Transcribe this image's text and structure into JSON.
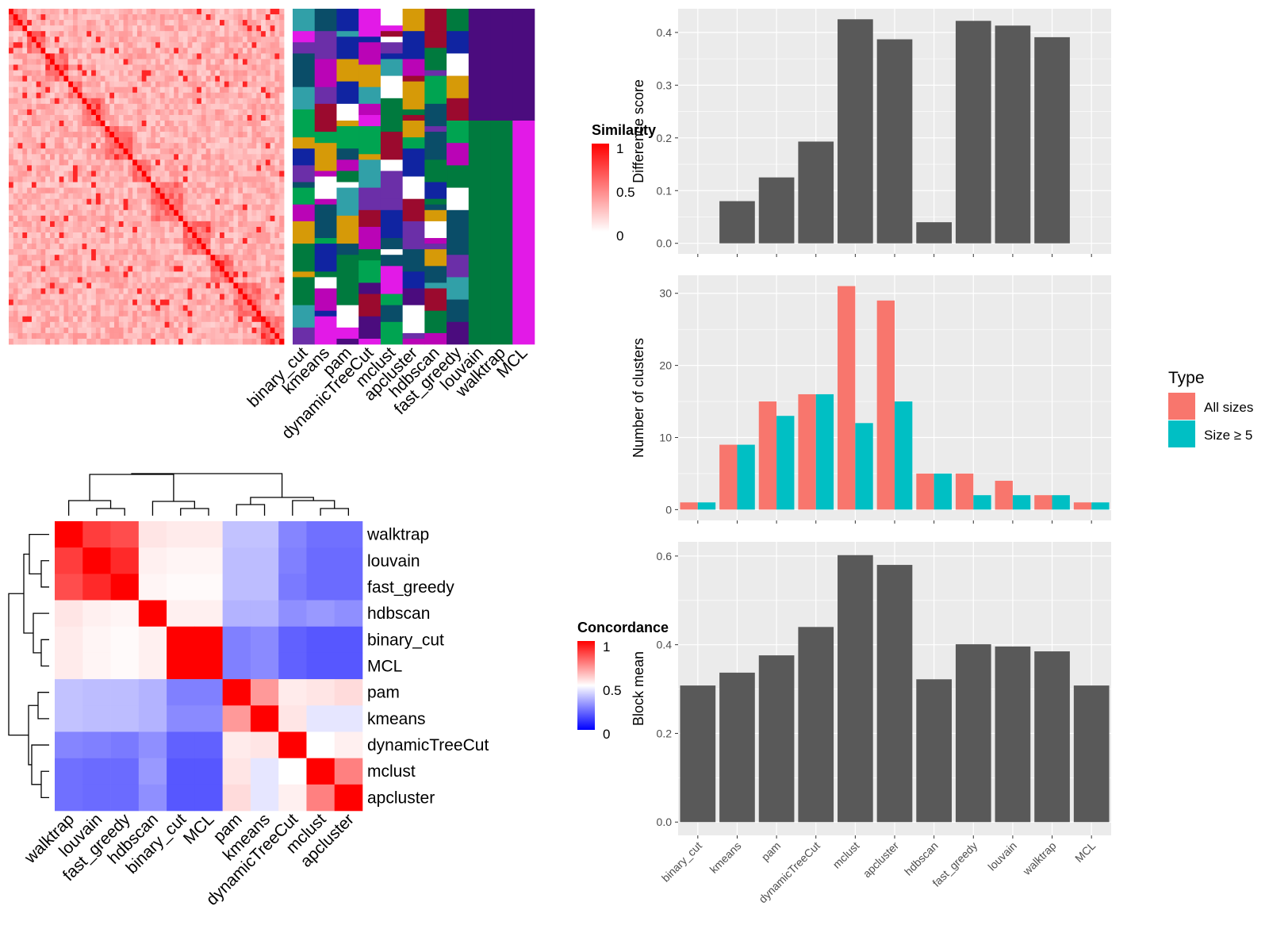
{
  "colors": {
    "panel_bg": "#ebebeb",
    "grid": "#ffffff",
    "bar": "#595959",
    "all_sizes": "#f8766d",
    "size_ge5": "#00bfc4",
    "heat_high": "#ff0000",
    "heat_mid": "#ffffff",
    "heat_low": "#0000ff",
    "membership_bg": "#4b0c7e"
  },
  "methods": [
    "binary_cut",
    "kmeans",
    "pam",
    "dynamicTreeCut",
    "mclust",
    "apcluster",
    "hdbscan",
    "fast_greedy",
    "louvain",
    "walktrap",
    "MCL"
  ],
  "similarity_panel": {
    "legend_title": "Similarity",
    "legend_ticks": [
      "1",
      "0.5",
      "0"
    ],
    "column_labels": [
      "binary_cut",
      "kmeans",
      "pam",
      "dynamicTreeCut",
      "mclust",
      "apcluster",
      "hdbscan",
      "fast_greedy",
      "louvain",
      "walktrap",
      "MCL"
    ]
  },
  "concordance_panel": {
    "legend_title": "Concordance",
    "legend_ticks": [
      "1",
      "0.5",
      "0"
    ],
    "order": [
      "walktrap",
      "louvain",
      "fast_greedy",
      "hdbscan",
      "binary_cut",
      "MCL",
      "pam",
      "kmeans",
      "dynamicTreeCut",
      "mclust",
      "apcluster"
    ],
    "matrix": [
      [
        1.0,
        0.88,
        0.85,
        0.55,
        0.54,
        0.54,
        0.38,
        0.38,
        0.26,
        0.22,
        0.22
      ],
      [
        0.88,
        1.0,
        0.92,
        0.53,
        0.52,
        0.52,
        0.37,
        0.37,
        0.25,
        0.21,
        0.21
      ],
      [
        0.85,
        0.92,
        1.0,
        0.52,
        0.51,
        0.51,
        0.37,
        0.37,
        0.24,
        0.21,
        0.21
      ],
      [
        0.55,
        0.53,
        0.52,
        1.0,
        0.53,
        0.53,
        0.35,
        0.35,
        0.28,
        0.3,
        0.28
      ],
      [
        0.54,
        0.52,
        0.51,
        0.53,
        1.0,
        1.0,
        0.25,
        0.27,
        0.19,
        0.17,
        0.17
      ],
      [
        0.54,
        0.52,
        0.51,
        0.53,
        1.0,
        1.0,
        0.25,
        0.27,
        0.19,
        0.17,
        0.17
      ],
      [
        0.38,
        0.37,
        0.37,
        0.35,
        0.25,
        0.25,
        1.0,
        0.7,
        0.54,
        0.55,
        0.57
      ],
      [
        0.38,
        0.37,
        0.37,
        0.35,
        0.27,
        0.27,
        0.7,
        1.0,
        0.55,
        0.45,
        0.45
      ],
      [
        0.26,
        0.25,
        0.24,
        0.28,
        0.19,
        0.19,
        0.54,
        0.55,
        1.0,
        0.5,
        0.53
      ],
      [
        0.22,
        0.21,
        0.21,
        0.3,
        0.17,
        0.17,
        0.55,
        0.45,
        0.5,
        1.0,
        0.75
      ],
      [
        0.22,
        0.21,
        0.21,
        0.28,
        0.17,
        0.17,
        0.57,
        0.45,
        0.53,
        0.75,
        1.0
      ]
    ]
  },
  "chart_data": [
    {
      "type": "bar",
      "categories": [
        "binary_cut",
        "kmeans",
        "pam",
        "dynamicTreeCut",
        "mclust",
        "apcluster",
        "hdbscan",
        "fast_greedy",
        "louvain",
        "walktrap",
        "MCL"
      ],
      "values": [
        0.0,
        0.08,
        0.125,
        0.193,
        0.425,
        0.387,
        0.04,
        0.422,
        0.413,
        0.391,
        0.0
      ],
      "ylabel": "Difference score",
      "ylim": [
        -0.02,
        0.445
      ],
      "yticks": [
        0.0,
        0.1,
        0.2,
        0.3,
        0.4
      ],
      "ytick_labels": [
        "0.0",
        "0.1",
        "0.2",
        "0.3",
        "0.4"
      ],
      "grid": true
    },
    {
      "type": "bar",
      "categories": [
        "binary_cut",
        "kmeans",
        "pam",
        "dynamicTreeCut",
        "mclust",
        "apcluster",
        "hdbscan",
        "fast_greedy",
        "louvain",
        "walktrap",
        "MCL"
      ],
      "series": [
        {
          "name": "All sizes",
          "values": [
            1,
            9,
            15,
            16,
            31,
            29,
            5,
            5,
            4,
            2,
            1
          ]
        },
        {
          "name": "Size ≥ 5",
          "values": [
            1,
            9,
            13,
            16,
            12,
            15,
            5,
            2,
            2,
            2,
            1
          ]
        }
      ],
      "ylabel": "Number of clusters",
      "ylim": [
        -1.5,
        32.5
      ],
      "yticks": [
        0,
        10,
        20,
        30
      ],
      "ytick_labels": [
        "0",
        "10",
        "20",
        "30"
      ],
      "legend_title": "Type",
      "legend_position": "right",
      "grid": true
    },
    {
      "type": "bar",
      "categories": [
        "binary_cut",
        "kmeans",
        "pam",
        "dynamicTreeCut",
        "mclust",
        "apcluster",
        "hdbscan",
        "fast_greedy",
        "louvain",
        "walktrap",
        "MCL"
      ],
      "values": [
        0.308,
        0.337,
        0.376,
        0.44,
        0.602,
        0.58,
        0.322,
        0.401,
        0.396,
        0.385,
        0.308
      ],
      "ylabel": "Block mean",
      "ylim": [
        -0.03,
        0.632
      ],
      "yticks": [
        0.0,
        0.2,
        0.4,
        0.6
      ],
      "ytick_labels": [
        "0.0",
        "0.2",
        "0.4",
        "0.6"
      ],
      "xlabels": [
        "binary_cut",
        "kmeans",
        "pam",
        "dynamicTreeCut",
        "mclust",
        "apcluster",
        "hdbscan",
        "fast_greedy",
        "louvain",
        "walktrap",
        "MCL"
      ],
      "grid": true
    }
  ]
}
